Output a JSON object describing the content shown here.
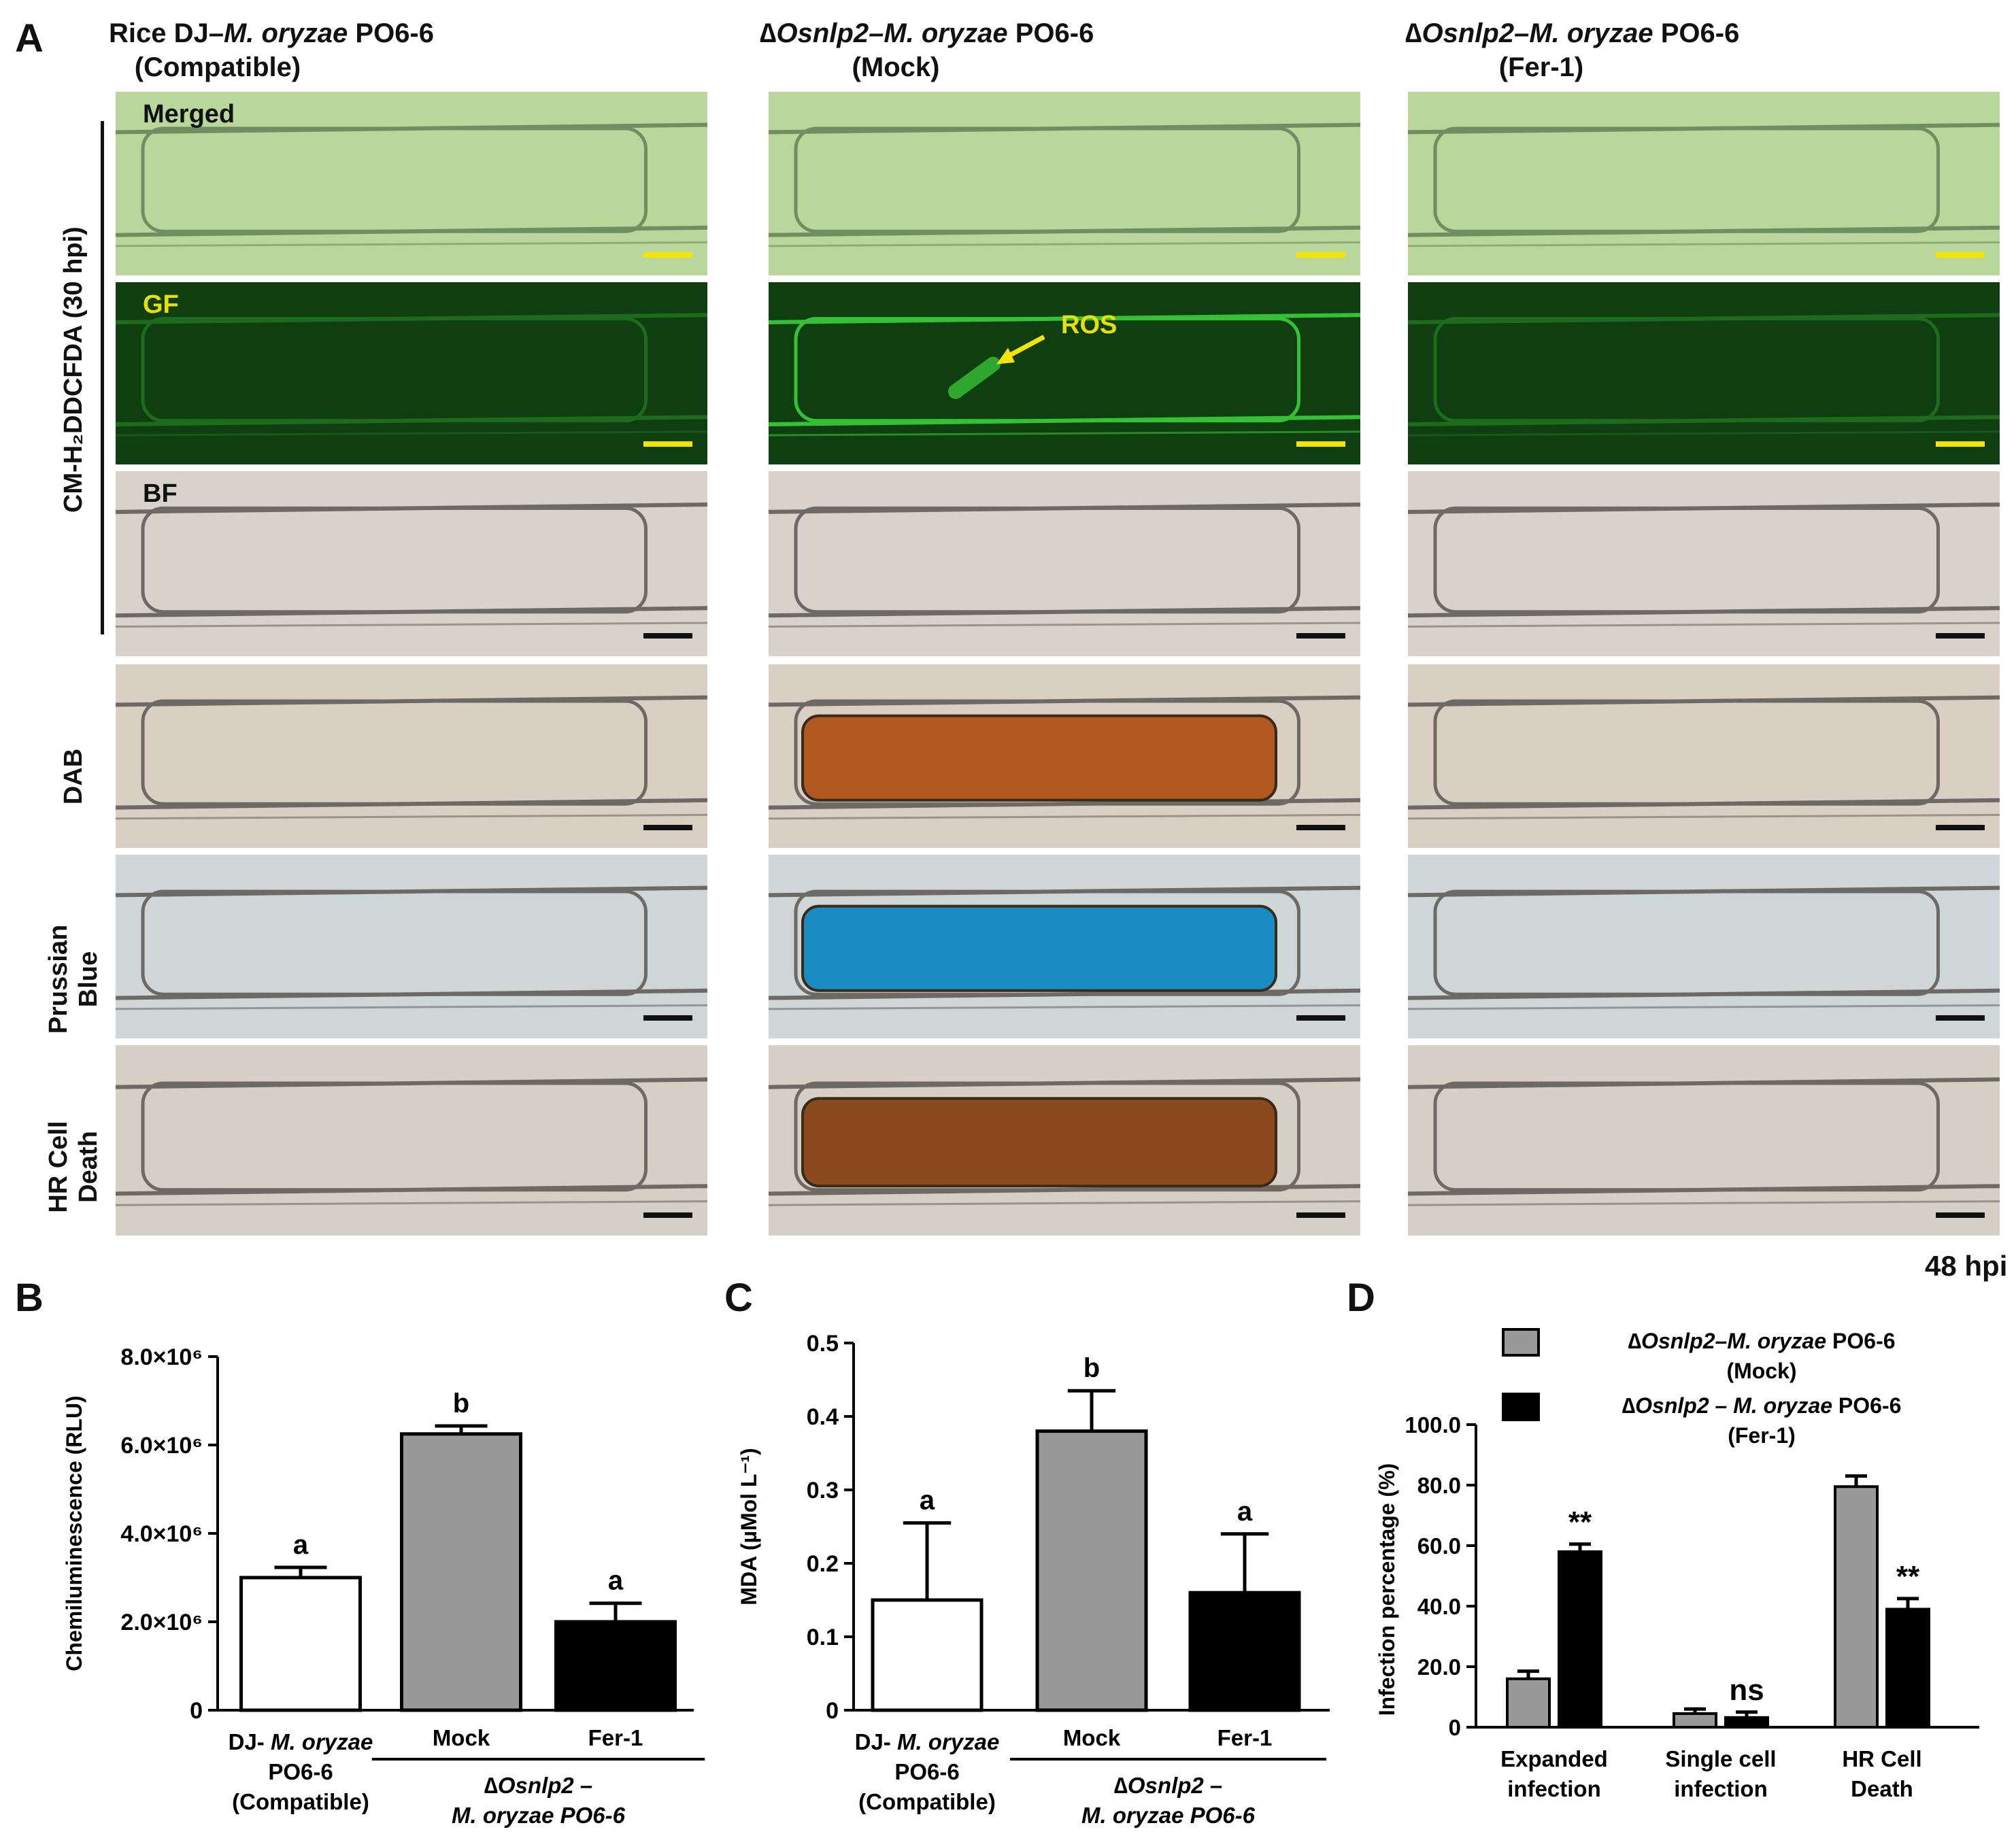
{
  "panelA": {
    "letter": "A",
    "columns": [
      {
        "line1_pre": "Rice DJ–",
        "line1_italic": "M. oryzae",
        "line1_post": " PO6-6",
        "line2": "(Compatible)"
      },
      {
        "line1_pre": "∆",
        "line1_italic": "Osnlp2–M. oryzae",
        "line1_post": " PO6-6",
        "line2": "(Mock)"
      },
      {
        "line1_pre": "∆",
        "line1_italic": "Osnlp2–M. oryzae",
        "line1_post": " PO6-6",
        "line2": "(Fer-1)"
      }
    ],
    "group_label": "CM-H₂DDCFDA (30 hpi)",
    "row_labels": [
      "DAB",
      "Prussian Blue",
      "HR Cell Death"
    ],
    "overlay_labels": {
      "merged": "Merged",
      "gf": "GF",
      "bf": "BF",
      "ros": "ROS"
    },
    "time_label": "48 hpi",
    "colors": {
      "merged": "#b9d79a",
      "gf": "#0f3f10",
      "gf_bright": "#2fa72f",
      "bf": "#d8d2cb",
      "dab": "#b0581f",
      "prussian": "#1a8cc4",
      "hr": "#8a4a1c",
      "scale_yellow": "#f5e400",
      "scale_black": "#111111"
    }
  },
  "panelB": {
    "letter": "B",
    "chart_data": {
      "type": "bar",
      "ylabel": "Chemiluminescence (RLU)",
      "ylim": [
        0,
        8000000
      ],
      "yticks": [
        "0",
        "2.0×10⁶",
        "4.0×10⁶",
        "6.0×10⁶",
        "8.0×10⁶"
      ],
      "categories": [
        "DJ- M. oryzae PO6-6 (Compatible)",
        "Mock",
        "Fer-1"
      ],
      "values": [
        3000000,
        6250000,
        2000000
      ],
      "errors": [
        230000,
        180000,
        420000
      ],
      "letters": [
        "a",
        "b",
        "a"
      ],
      "fills": [
        "#ffffff",
        "#999999",
        "#000000"
      ],
      "xlabels": {
        "cat1": [
          "DJ- M. oryzae",
          "PO6-6",
          "(Compatible)"
        ],
        "cat2": "Mock",
        "cat3": "Fer-1",
        "group": [
          "∆Osnlp2 –",
          "M. oryzae PO6-6"
        ]
      }
    }
  },
  "panelC": {
    "letter": "C",
    "chart_data": {
      "type": "bar",
      "ylabel": "MDA (µMol  L⁻¹)",
      "ylim": [
        0,
        0.5
      ],
      "yticks": [
        "0",
        "0.1",
        "0.2",
        "0.3",
        "0.4",
        "0.5"
      ],
      "categories": [
        "DJ- M. oryzae PO6-6 (Compatible)",
        "Mock",
        "Fer-1"
      ],
      "values": [
        0.15,
        0.38,
        0.16
      ],
      "errors": [
        0.105,
        0.055,
        0.08
      ],
      "letters": [
        "a",
        "b",
        "a"
      ],
      "fills": [
        "#ffffff",
        "#999999",
        "#000000"
      ],
      "xlabels": {
        "cat1": [
          "DJ- M. oryzae",
          "PO6-6",
          "(Compatible)"
        ],
        "cat2": "Mock",
        "cat3": "Fer-1",
        "group": [
          "∆Osnlp2 –",
          "M. oryzae PO6-6"
        ]
      }
    }
  },
  "panelD": {
    "letter": "D",
    "chart_data": {
      "type": "bar",
      "ylabel": "Infection percentage (%)",
      "ylim": [
        0,
        100
      ],
      "yticks": [
        "0",
        "20.0",
        "40.0",
        "60.0",
        "80.0",
        "100.0"
      ],
      "categories": [
        "Expanded infection",
        "Single cell infection",
        "HR Cell Death"
      ],
      "category_lines": [
        [
          "Expanded",
          "infection"
        ],
        [
          "Single cell",
          "infection"
        ],
        [
          "HR Cell",
          "Death"
        ]
      ],
      "series": [
        {
          "name": "∆Osnlp2–M. oryzae PO6-6 (Mock)",
          "legend": [
            "∆Osnlp2–M. oryzae PO6-6",
            "(Mock)"
          ],
          "color": "#999999",
          "values": [
            16,
            4.5,
            79.5
          ],
          "errors": [
            2.5,
            1.5,
            3.5
          ]
        },
        {
          "name": "∆Osnlp2 – M. oryzae PO6-6 (Fer-1)",
          "legend": [
            "∆Osnlp2 – M. oryzae PO6-6",
            "(Fer-1)"
          ],
          "color": "#000000",
          "values": [
            58,
            3.2,
            39
          ],
          "errors": [
            2.5,
            1.8,
            3.5
          ]
        }
      ],
      "significance": [
        "**",
        "ns",
        "**"
      ]
    }
  }
}
